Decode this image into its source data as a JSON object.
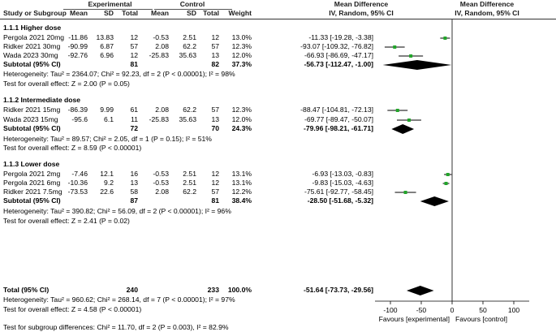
{
  "header": {
    "group_experimental": "Experimental",
    "group_control": "Control",
    "md_title_left": "Mean Difference",
    "md_sub_left": "IV, Random, 95% CI",
    "md_title_right": "Mean Difference",
    "md_sub_right": "IV, Random, 95% CI",
    "col_study": "Study or Subgroup",
    "col_mean": "Mean",
    "col_sd": "SD",
    "col_total": "Total",
    "col_mean2": "Mean",
    "col_sd2": "SD",
    "col_total2": "Total",
    "col_weight": "Weight"
  },
  "chart_data": {
    "type": "forest",
    "x_axis": {
      "ticks": [
        -100,
        -50,
        0,
        50,
        100
      ],
      "tick_labels": [
        "-100",
        "-50",
        "0",
        "50",
        "100"
      ],
      "range": [
        -125,
        125
      ],
      "label_left": "Favours [experimental]",
      "label_right": "Favours [control]"
    },
    "subgroups": [
      {
        "title": "1.1.1 Higher dose",
        "studies": [
          {
            "name": "Pergola 2021 20mg",
            "e_mean": "-11.86",
            "e_sd": "13.83",
            "e_total": "12",
            "c_mean": "-0.53",
            "c_sd": "2.51",
            "c_total": "12",
            "weight": "13.0%",
            "ci_text": "-11.33 [-19.28, -3.38]",
            "md": -11.33,
            "lo": -19.28,
            "hi": -3.38
          },
          {
            "name": "Ridker 2021 30mg",
            "e_mean": "-90.99",
            "e_sd": "6.87",
            "e_total": "57",
            "c_mean": "2.08",
            "c_sd": "62.2",
            "c_total": "57",
            "weight": "12.3%",
            "ci_text": "-93.07 [-109.32, -76.82]",
            "md": -93.07,
            "lo": -109.32,
            "hi": -76.82
          },
          {
            "name": "Wada 2023 30mg",
            "e_mean": "-92.76",
            "e_sd": "6.96",
            "e_total": "12",
            "c_mean": "-25.83",
            "c_sd": "35.63",
            "c_total": "13",
            "weight": "12.0%",
            "ci_text": "-66.93 [-86.69, -47.17]",
            "md": -66.93,
            "lo": -86.69,
            "hi": -47.17
          }
        ],
        "subtotal": {
          "label": "Subtotal (95% CI)",
          "e_total": "81",
          "c_total": "82",
          "weight": "37.3%",
          "ci_text": "-56.73 [-112.47, -1.00]",
          "md": -56.73,
          "lo": -112.47,
          "hi": -1.0
        },
        "heterogeneity": "Heterogeneity: Tau² = 2364.07; Chi² = 92.23, df = 2 (P < 0.00001); I² = 98%",
        "overall": "Test for overall effect: Z = 2.00 (P = 0.05)"
      },
      {
        "title": "1.1.2 Intermediate dose",
        "studies": [
          {
            "name": "Ridker 2021 15mg",
            "e_mean": "-86.39",
            "e_sd": "9.99",
            "e_total": "61",
            "c_mean": "2.08",
            "c_sd": "62.2",
            "c_total": "57",
            "weight": "12.3%",
            "ci_text": "-88.47 [-104.81, -72.13]",
            "md": -88.47,
            "lo": -104.81,
            "hi": -72.13
          },
          {
            "name": "Wada 2023 15mg",
            "e_mean": "-95.6",
            "e_sd": "6.1",
            "e_total": "11",
            "c_mean": "-25.83",
            "c_sd": "35.63",
            "c_total": "13",
            "weight": "12.0%",
            "ci_text": "-69.77 [-89.47, -50.07]",
            "md": -69.77,
            "lo": -89.47,
            "hi": -50.07
          }
        ],
        "subtotal": {
          "label": "Subtotal (95% CI)",
          "e_total": "72",
          "c_total": "70",
          "weight": "24.3%",
          "ci_text": "-79.96 [-98.21, -61.71]",
          "md": -79.96,
          "lo": -98.21,
          "hi": -61.71
        },
        "heterogeneity": "Heterogeneity: Tau² = 89.57; Chi² = 2.05, df = 1 (P = 0.15); I² = 51%",
        "overall": "Test for overall effect: Z = 8.59 (P < 0.00001)"
      },
      {
        "title": "1.1.3 Lower dose",
        "studies": [
          {
            "name": "Pergola 2021 2mg",
            "e_mean": "-7.46",
            "e_sd": "12.1",
            "e_total": "16",
            "c_mean": "-0.53",
            "c_sd": "2.51",
            "c_total": "12",
            "weight": "13.1%",
            "ci_text": "-6.93 [-13.03, -0.83]",
            "md": -6.93,
            "lo": -13.03,
            "hi": -0.83
          },
          {
            "name": "Pergola 2021 6mg",
            "e_mean": "-10.36",
            "e_sd": "9.2",
            "e_total": "13",
            "c_mean": "-0.53",
            "c_sd": "2.51",
            "c_total": "12",
            "weight": "13.1%",
            "ci_text": "-9.83 [-15.03, -4.63]",
            "md": -9.83,
            "lo": -15.03,
            "hi": -4.63
          },
          {
            "name": "Ridker 2021 7.5mg",
            "e_mean": "-73.53",
            "e_sd": "22.6",
            "e_total": "58",
            "c_mean": "2.08",
            "c_sd": "62.2",
            "c_total": "57",
            "weight": "12.2%",
            "ci_text": "-75.61 [-92.77, -58.45]",
            "md": -75.61,
            "lo": -92.77,
            "hi": -58.45
          }
        ],
        "subtotal": {
          "label": "Subtotal (95% CI)",
          "e_total": "87",
          "c_total": "81",
          "weight": "38.4%",
          "ci_text": "-28.50 [-51.68, -5.32]",
          "md": -28.5,
          "lo": -51.68,
          "hi": -5.32
        },
        "heterogeneity": "Heterogeneity: Tau² = 390.82; Chi² = 56.09, df = 2 (P < 0.00001); I² = 96%",
        "overall": "Test for overall effect: Z = 2.41 (P = 0.02)"
      }
    ],
    "total": {
      "label": "Total (95% CI)",
      "e_total": "240",
      "c_total": "233",
      "weight": "100.0%",
      "ci_text": "-51.64 [-73.73, -29.56]",
      "md": -51.64,
      "lo": -73.73,
      "hi": -29.56
    },
    "total_heterogeneity": "Heterogeneity: Tau² = 960.62; Chi² = 268.14, df = 7 (P < 0.00001); I² = 97%",
    "total_overall": "Test for overall effect: Z = 4.58 (P < 0.00001)",
    "subgroup_diff": "Test for subgroup differences: Chi² = 11.70, df = 2 (P = 0.003), I² = 82.9%",
    "colors": {
      "point": "#22a52a",
      "line": "#000000",
      "diamond": "#000000"
    }
  }
}
